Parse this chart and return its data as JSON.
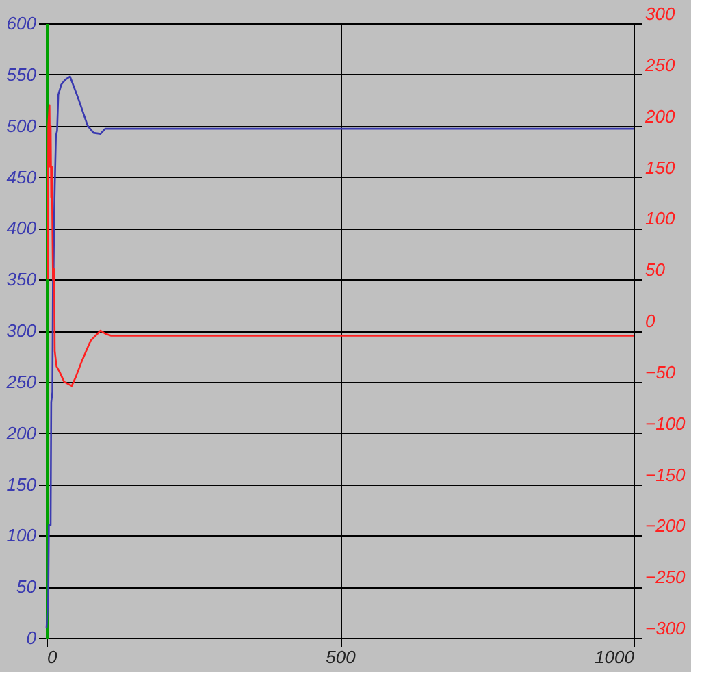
{
  "chart_data": {
    "type": "line",
    "xlim": [
      0,
      1000
    ],
    "xticks": [
      0,
      500,
      1000
    ],
    "ylim": [
      0,
      600
    ],
    "yticks": [
      0,
      50,
      100,
      150,
      200,
      250,
      300,
      350,
      400,
      450,
      500,
      550,
      600
    ],
    "y2lim": [
      -300,
      300
    ],
    "y2ticks": [
      -300,
      -250,
      -200,
      -150,
      -100,
      -50,
      0,
      50,
      100,
      150,
      200,
      250,
      300
    ],
    "grid": true,
    "marker": "none",
    "line_style": "solid",
    "series": [
      {
        "color": "#3a3ab0",
        "axis": "y",
        "x": [
          0,
          3,
          4,
          7,
          8,
          10,
          11,
          12,
          13,
          14,
          16,
          18,
          20,
          25,
          32,
          40,
          55,
          70,
          80,
          92,
          100,
          120,
          1000
        ],
        "values": [
          10,
          40,
          110,
          110,
          230,
          240,
          355,
          360,
          410,
          440,
          490,
          495,
          530,
          540,
          545,
          548,
          525,
          500,
          493,
          492,
          497,
          497,
          497
        ]
      },
      {
        "color": "#ff2020",
        "axis": "y2",
        "x": [
          2,
          3,
          5,
          6,
          7,
          8,
          9,
          11,
          13,
          14,
          17,
          22,
          30,
          43,
          50,
          60,
          75,
          92,
          100,
          110,
          1000
        ],
        "values": [
          50,
          200,
          220,
          160,
          200,
          130,
          160,
          50,
          60,
          -20,
          -35,
          -40,
          -50,
          -54,
          -45,
          -30,
          -10,
          0,
          -3,
          -5,
          -5
        ]
      }
    ]
  }
}
